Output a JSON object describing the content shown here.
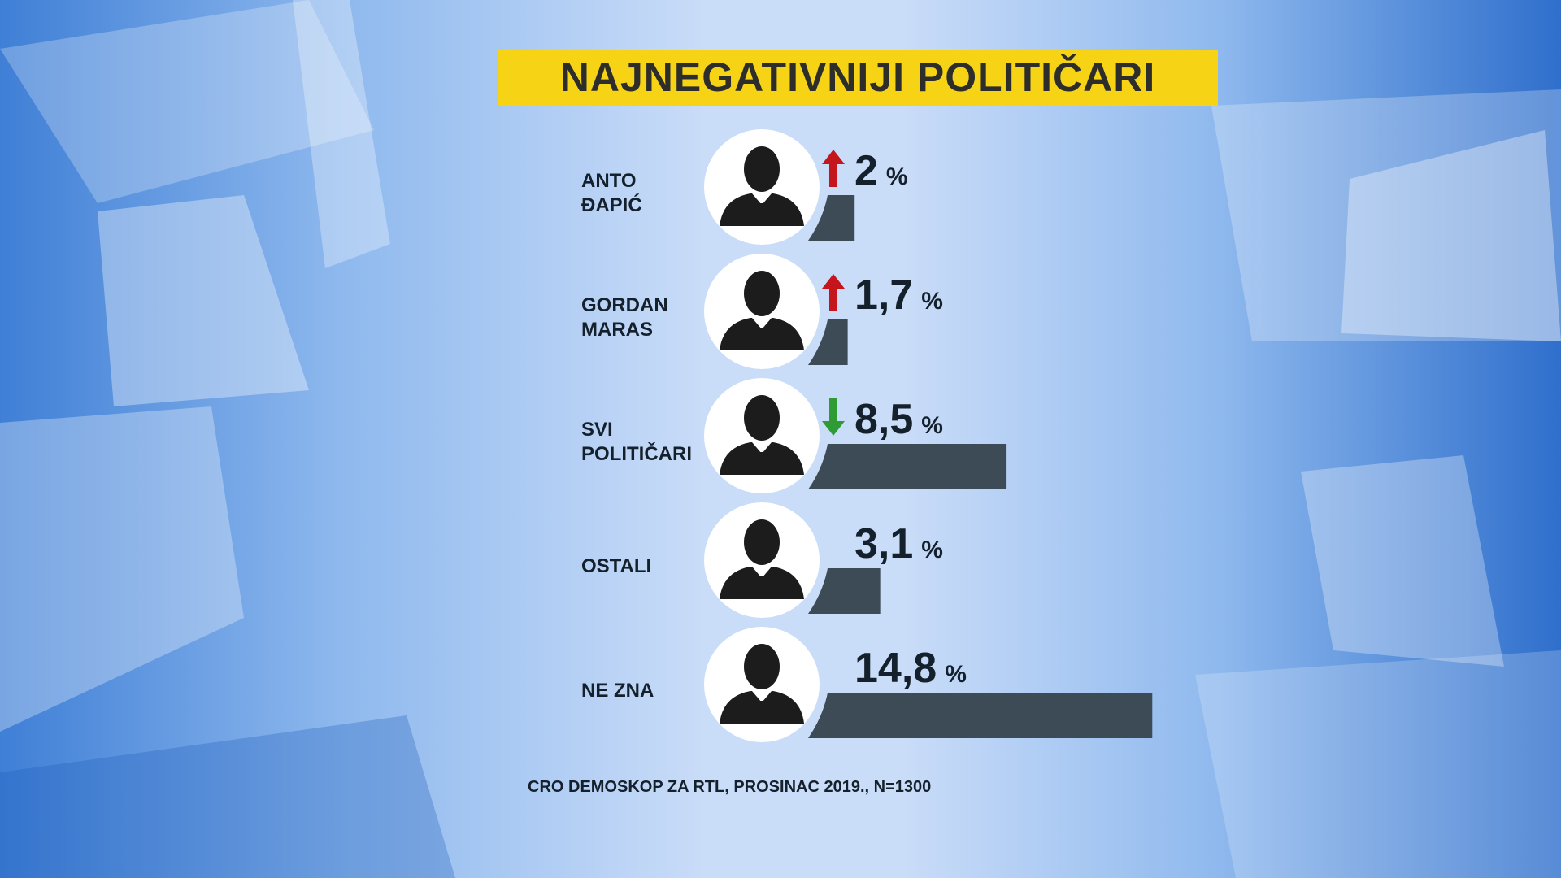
{
  "chart_data": {
    "type": "bar",
    "orientation": "horizontal",
    "title": "NAJNEGATIVNIJI POLITIČARI",
    "categories": [
      "ANTO\nĐAPIĆ",
      "GORDAN\nMARAS",
      "SVI\nPOLITIČARI",
      "OSTALI",
      "NE ZNA"
    ],
    "values": [
      2,
      1.7,
      8.5,
      3.1,
      14.8
    ],
    "value_labels": [
      "2",
      "1,7",
      "8,5",
      "3,1",
      "14,8"
    ],
    "unit": "%",
    "trend": [
      "up",
      "up",
      "down",
      null,
      null
    ],
    "trend_colors": {
      "up": "#c4161c",
      "down": "#2e9b35"
    },
    "color": "#3c4b55",
    "source": "CRO DEMOSKOP ZA RTL, PROSINAC 2019., N=1300"
  }
}
